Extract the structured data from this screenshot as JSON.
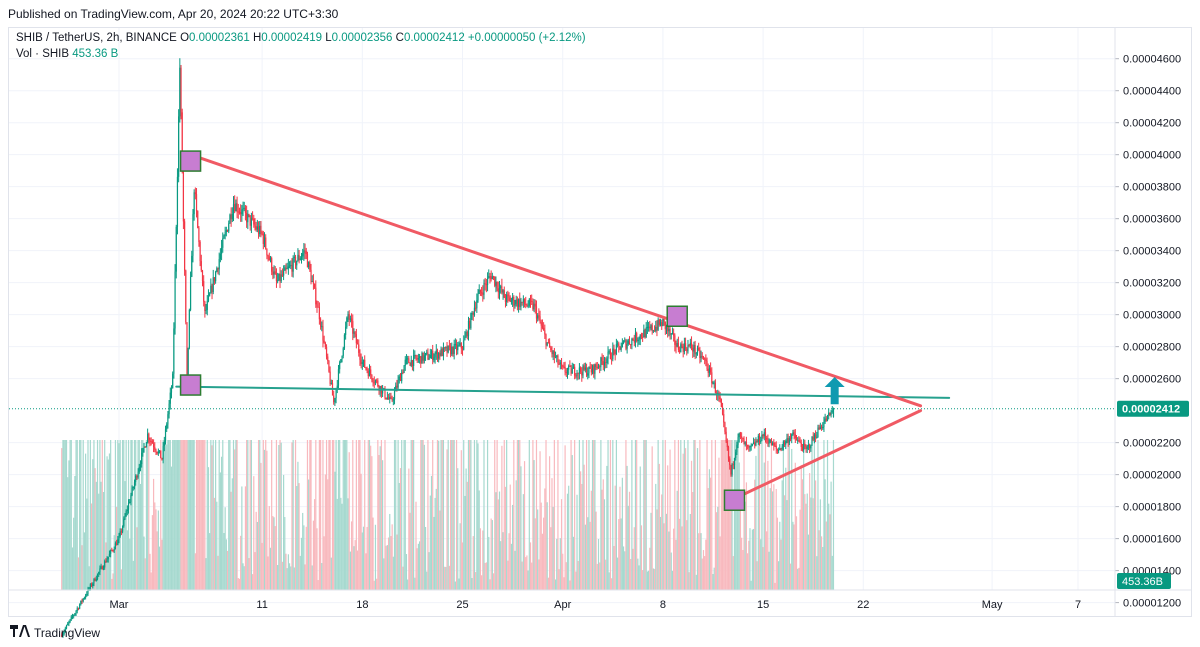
{
  "header": {
    "published_text": "Published on TradingView.com, Apr 20, 2024 20:22 UTC+3:30"
  },
  "legend": {
    "symbol": "SHIB / TetherUS, 2h, BINANCE",
    "open_label": "O",
    "open": "0.00002361",
    "high_label": "H",
    "high": "0.00002419",
    "low_label": "L",
    "low": "0.00002356",
    "close_label": "C",
    "close": "0.00002412",
    "change": "+0.00000050 (+2.12%)",
    "vol_label": "Vol · SHIB",
    "vol_value": "453.36 B"
  },
  "footer": {
    "brand": "TradingView"
  },
  "colors": {
    "up": "#089981",
    "down": "#f23645",
    "up_volume": "#a6d9cf",
    "down_volume": "#f8b9be",
    "trendline": "#f05a64",
    "support": "#26a18e",
    "marker_fill": "#c77dd1",
    "marker_stroke": "#2e7d32",
    "arrow": "#0f9ab0"
  },
  "chart_data": {
    "type": "candlestick",
    "symbol": "SHIB / TetherUS",
    "timeframe": "2h",
    "exchange": "BINANCE",
    "y_axis_ticks": [
      "0.00004600",
      "0.00004400",
      "0.00004200",
      "0.00004000",
      "0.00003800",
      "0.00003600",
      "0.00003400",
      "0.00003200",
      "0.00003000",
      "0.00002800",
      "0.00002600",
      "0.00002200",
      "0.00002000",
      "0.00001800",
      "0.00001600",
      "0.00001400",
      "0.00001200"
    ],
    "x_axis_ticks": [
      "Mar",
      "11",
      "18",
      "25",
      "Apr",
      "8",
      "15",
      "22",
      "May",
      "7"
    ],
    "last_price_label": "0.00002412",
    "volume_label": "453.36B",
    "ylim": [
      1.1e-05,
      4.77e-05
    ],
    "key_points": [
      {
        "date": "2024-02-26",
        "price": 1e-05
      },
      {
        "date": "2024-02-28",
        "price": 1.3e-05
      },
      {
        "date": "2024-03-01",
        "price": 1.6e-05
      },
      {
        "date": "2024-03-03",
        "price": 2.25e-05
      },
      {
        "date": "2024-03-04",
        "price": 2.1e-05
      },
      {
        "date": "2024-03-05",
        "price": 2.6e-05
      },
      {
        "date": "2024-03-05",
        "price": 4.55e-05
      },
      {
        "date": "2024-03-06",
        "price": 2.6e-05
      },
      {
        "date": "2024-03-06",
        "price": 3.8e-05
      },
      {
        "date": "2024-03-07",
        "price": 3e-05
      },
      {
        "date": "2024-03-09",
        "price": 3.7e-05
      },
      {
        "date": "2024-03-11",
        "price": 3.5e-05
      },
      {
        "date": "2024-03-12",
        "price": 3.2e-05
      },
      {
        "date": "2024-03-13",
        "price": 3.3e-05
      },
      {
        "date": "2024-03-14",
        "price": 3.4e-05
      },
      {
        "date": "2024-03-15",
        "price": 3e-05
      },
      {
        "date": "2024-03-16",
        "price": 2.45e-05
      },
      {
        "date": "2024-03-17",
        "price": 3e-05
      },
      {
        "date": "2024-03-18",
        "price": 2.7e-05
      },
      {
        "date": "2024-03-20",
        "price": 2.45e-05
      },
      {
        "date": "2024-03-21",
        "price": 2.7e-05
      },
      {
        "date": "2024-03-23",
        "price": 2.75e-05
      },
      {
        "date": "2024-03-25",
        "price": 2.8e-05
      },
      {
        "date": "2024-03-26",
        "price": 3.1e-05
      },
      {
        "date": "2024-03-27",
        "price": 3.25e-05
      },
      {
        "date": "2024-03-28",
        "price": 3.1e-05
      },
      {
        "date": "2024-03-30",
        "price": 3.05e-05
      },
      {
        "date": "2024-03-31",
        "price": 2.8e-05
      },
      {
        "date": "2024-04-01",
        "price": 2.65e-05
      },
      {
        "date": "2024-04-03",
        "price": 2.65e-05
      },
      {
        "date": "2024-04-05",
        "price": 2.8e-05
      },
      {
        "date": "2024-04-07",
        "price": 2.9e-05
      },
      {
        "date": "2024-04-08",
        "price": 2.95e-05
      },
      {
        "date": "2024-04-09",
        "price": 2.8e-05
      },
      {
        "date": "2024-04-10",
        "price": 2.8e-05
      },
      {
        "date": "2024-04-11",
        "price": 2.7e-05
      },
      {
        "date": "2024-04-12",
        "price": 2.45e-05
      },
      {
        "date": "2024-04-13",
        "price": 2e-05
      },
      {
        "date": "2024-04-13",
        "price": 2.25e-05
      },
      {
        "date": "2024-04-14",
        "price": 2.15e-05
      },
      {
        "date": "2024-04-15",
        "price": 2.25e-05
      },
      {
        "date": "2024-04-16",
        "price": 2.15e-05
      },
      {
        "date": "2024-04-17",
        "price": 2.25e-05
      },
      {
        "date": "2024-04-18",
        "price": 2.15e-05
      },
      {
        "date": "2024-04-19",
        "price": 2.3e-05
      },
      {
        "date": "2024-04-20",
        "price": 2.41e-05
      }
    ],
    "annotations": {
      "upper_trendline": [
        [
          "2024-03-06",
          4e-05
        ],
        [
          "2024-04-26",
          2.43e-05
        ]
      ],
      "lower_trendline": [
        [
          "2024-04-13",
          1.85e-05
        ],
        [
          "2024-04-26",
          2.4e-05
        ]
      ],
      "support_line": [
        [
          "2024-03-05",
          2.55e-05
        ],
        [
          "2024-04-28",
          2.48e-05
        ]
      ],
      "markers": [
        {
          "date": "2024-03-06",
          "price": 3.96e-05
        },
        {
          "date": "2024-03-06",
          "price": 2.56e-05
        },
        {
          "date": "2024-04-09",
          "price": 2.99e-05
        },
        {
          "date": "2024-04-13",
          "price": 1.84e-05
        }
      ],
      "breakout_arrow": {
        "date": "2024-04-20",
        "from": 2.44e-05,
        "to": 2.61e-05
      }
    }
  }
}
